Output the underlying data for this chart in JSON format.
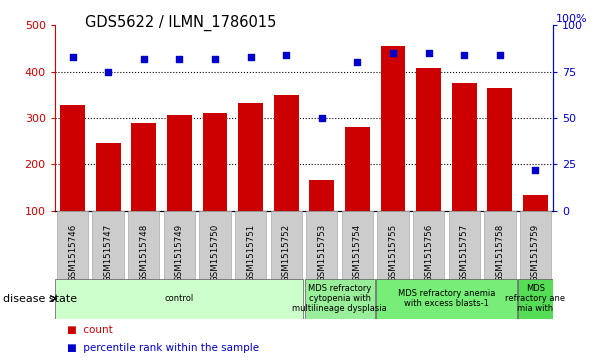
{
  "title": "GDS5622 / ILMN_1786015",
  "samples": [
    "GSM1515746",
    "GSM1515747",
    "GSM1515748",
    "GSM1515749",
    "GSM1515750",
    "GSM1515751",
    "GSM1515752",
    "GSM1515753",
    "GSM1515754",
    "GSM1515755",
    "GSM1515756",
    "GSM1515757",
    "GSM1515758",
    "GSM1515759"
  ],
  "counts": [
    328,
    247,
    290,
    307,
    310,
    332,
    350,
    167,
    280,
    455,
    408,
    375,
    365,
    133
  ],
  "percentile_ranks": [
    83,
    75,
    82,
    82,
    82,
    83,
    84,
    50,
    80,
    85,
    85,
    84,
    84,
    22
  ],
  "ylim_left": [
    100,
    500
  ],
  "ylim_right": [
    0,
    100
  ],
  "yticks_left": [
    100,
    200,
    300,
    400,
    500
  ],
  "yticks_right": [
    0,
    25,
    50,
    75,
    100
  ],
  "bar_color": "#cc0000",
  "dot_color": "#0000cc",
  "disease_groups": [
    {
      "label": "control",
      "start": 0,
      "end": 7,
      "color": "#ccffcc"
    },
    {
      "label": "MDS refractory\ncytopenia with\nmultilineage dysplasia",
      "start": 7,
      "end": 9,
      "color": "#99ee99"
    },
    {
      "label": "MDS refractory anemia\nwith excess blasts-1",
      "start": 9,
      "end": 13,
      "color": "#77ee77"
    },
    {
      "label": "MDS\nrefractory ane\nmia with",
      "start": 13,
      "end": 14,
      "color": "#55dd55"
    }
  ],
  "disease_state_label": "disease state",
  "legend_count_label": "count",
  "legend_pct_label": "percentile rank within the sample",
  "grid_dotted_at": [
    200,
    300,
    400
  ],
  "sample_box_color": "#cccccc",
  "sample_box_edge": "#aaaaaa"
}
